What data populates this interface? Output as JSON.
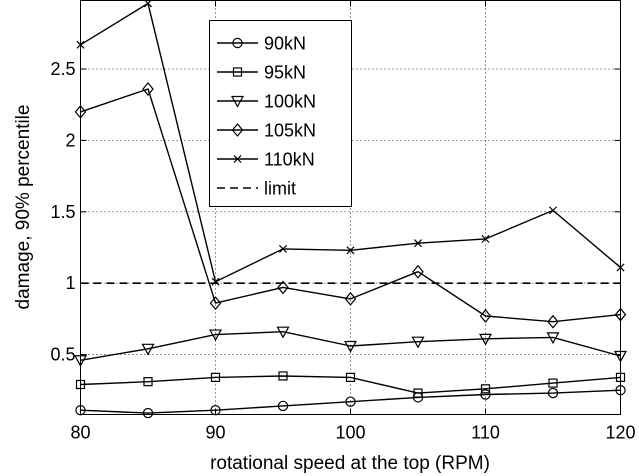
{
  "chart_data": {
    "type": "line",
    "xlabel": "rotational speed at the top (RPM)",
    "ylabel": "damage, 90% percentile",
    "xlim": [
      80,
      120
    ],
    "ylim": [
      0.08,
      2.98
    ],
    "x_ticks": [
      80,
      90,
      100,
      110,
      120
    ],
    "y_ticks": [
      0.5,
      1,
      1.5,
      2,
      2.5
    ],
    "x_tick_labels": [
      "80",
      "90",
      "100",
      "110",
      "120"
    ],
    "y_tick_labels": [
      "0.5",
      "1",
      "1.5",
      "2",
      "2.5"
    ],
    "grid": true,
    "legend_position": "top-center",
    "x": [
      80,
      85,
      90,
      95,
      100,
      105,
      110,
      115,
      120
    ],
    "series": [
      {
        "name": "90kN",
        "marker": "circle",
        "values": [
          0.11,
          0.09,
          0.11,
          0.14,
          0.17,
          0.2,
          0.22,
          0.23,
          0.25
        ]
      },
      {
        "name": "95kN",
        "marker": "square",
        "values": [
          0.29,
          0.31,
          0.34,
          0.35,
          0.34,
          0.23,
          0.26,
          0.3,
          0.34
        ]
      },
      {
        "name": "100kN",
        "marker": "triangle-down",
        "values": [
          0.46,
          0.54,
          0.64,
          0.66,
          0.56,
          0.59,
          0.61,
          0.62,
          0.49
        ]
      },
      {
        "name": "105kN",
        "marker": "diamond",
        "values": [
          2.2,
          2.36,
          0.86,
          0.97,
          0.89,
          1.08,
          0.77,
          0.73,
          0.78
        ]
      },
      {
        "name": "110kN",
        "marker": "x",
        "values": [
          2.67,
          2.96,
          1.01,
          1.24,
          1.23,
          1.28,
          1.31,
          1.51,
          1.11
        ]
      },
      {
        "name": "limit",
        "marker": "none",
        "dashed": true,
        "values": [
          1,
          1,
          1,
          1,
          1,
          1,
          1,
          1,
          1
        ]
      }
    ]
  }
}
